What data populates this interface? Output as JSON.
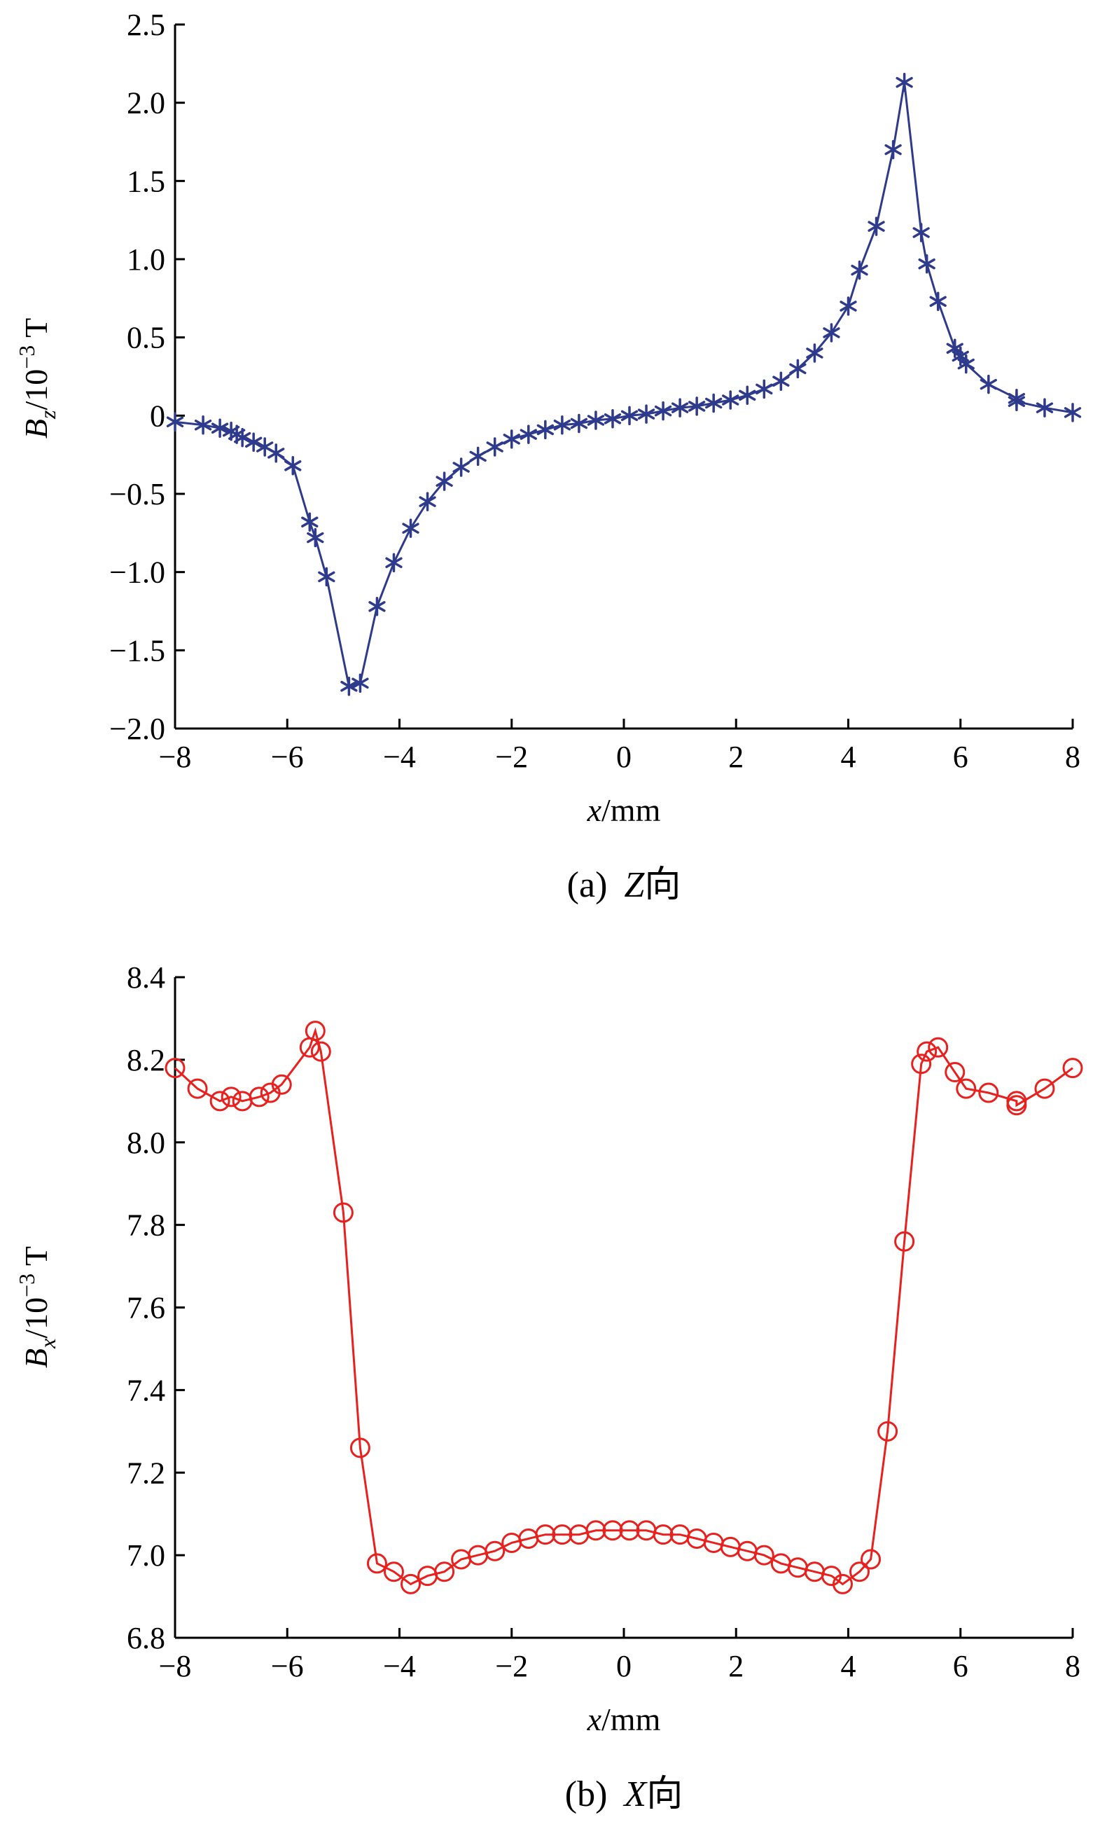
{
  "chart_data": [
    {
      "type": "line",
      "caption": {
        "prefix": "(a)",
        "axis_letter": "Z",
        "suffix": "向"
      },
      "xlabel": {
        "var": "x",
        "unit": "/mm"
      },
      "ylabel": {
        "var": "B",
        "sub": "z",
        "unit": "/10",
        "exp": "−3",
        "tail": " T"
      },
      "xlim": [
        -8,
        8
      ],
      "ylim": [
        -2.0,
        2.5
      ],
      "xticks": [
        -8,
        -6,
        -4,
        -2,
        0,
        2,
        4,
        6,
        8
      ],
      "xtick_labels": [
        "−8",
        "−6",
        "−4",
        "−2",
        "0",
        "2",
        "4",
        "6",
        "8"
      ],
      "yticks": [
        -2.0,
        -1.5,
        -1.0,
        -0.5,
        0,
        0.5,
        1.0,
        1.5,
        2.0,
        2.5
      ],
      "ytick_labels": [
        "−2.0",
        "−1.5",
        "−1.0",
        "−0.5",
        "0",
        "0.5",
        "1.0",
        "1.5",
        "2.0",
        "2.5"
      ],
      "grid": false,
      "color": "#2e3a8c",
      "marker": "asterisk",
      "series": [
        {
          "x": [
            -8.0,
            -7.5,
            -7.2,
            -7.0,
            -6.9,
            -6.8,
            -6.6,
            -6.4,
            -6.2,
            -5.9,
            -5.6,
            -5.5,
            -5.3,
            -4.9,
            -4.7,
            -4.4,
            -4.1,
            -3.8,
            -3.5,
            -3.2,
            -2.9,
            -2.6,
            -2.3,
            -2.0,
            -1.7,
            -1.4,
            -1.1,
            -0.8,
            -0.5,
            -0.2,
            0.1,
            0.4,
            0.7,
            1.0,
            1.3,
            1.6,
            1.9,
            2.2,
            2.5,
            2.8,
            3.1,
            3.4,
            3.7,
            4.0,
            4.2,
            4.5,
            4.8,
            5.0,
            5.3,
            5.4,
            5.6,
            5.9,
            6.0,
            6.1,
            6.5,
            7.0,
            7.0,
            7.5,
            8.0
          ],
          "y": [
            -0.04,
            -0.06,
            -0.08,
            -0.1,
            -0.12,
            -0.14,
            -0.17,
            -0.2,
            -0.24,
            -0.32,
            -0.68,
            -0.78,
            -1.03,
            -1.73,
            -1.71,
            -1.22,
            -0.94,
            -0.72,
            -0.55,
            -0.42,
            -0.33,
            -0.26,
            -0.2,
            -0.15,
            -0.12,
            -0.09,
            -0.06,
            -0.05,
            -0.03,
            -0.02,
            0.0,
            0.01,
            0.03,
            0.05,
            0.06,
            0.08,
            0.1,
            0.13,
            0.17,
            0.22,
            0.3,
            0.4,
            0.53,
            0.7,
            0.93,
            1.21,
            1.7,
            2.13,
            1.17,
            0.97,
            0.73,
            0.43,
            0.38,
            0.33,
            0.2,
            0.11,
            0.09,
            0.05,
            0.02
          ]
        }
      ]
    },
    {
      "type": "line",
      "caption": {
        "prefix": "(b)",
        "axis_letter": "X",
        "suffix": "向"
      },
      "xlabel": {
        "var": "x",
        "unit": "/mm"
      },
      "ylabel": {
        "var": "B",
        "sub": "x",
        "unit": "/10",
        "exp": "−3",
        "tail": " T"
      },
      "xlim": [
        -8,
        8
      ],
      "ylim": [
        6.8,
        8.4
      ],
      "xticks": [
        -8,
        -6,
        -4,
        -2,
        0,
        2,
        4,
        6,
        8
      ],
      "xtick_labels": [
        "−8",
        "−6",
        "−4",
        "−2",
        "0",
        "2",
        "4",
        "6",
        "8"
      ],
      "yticks": [
        6.8,
        7.0,
        7.2,
        7.4,
        7.6,
        7.8,
        8.0,
        8.2,
        8.4
      ],
      "ytick_labels": [
        "6.8",
        "7.0",
        "7.2",
        "7.4",
        "7.6",
        "7.8",
        "8.0",
        "8.2",
        "8.4"
      ],
      "grid": false,
      "color": "#e8201e",
      "marker": "circle",
      "series": [
        {
          "x": [
            -8.0,
            -7.6,
            -7.2,
            -7.0,
            -6.8,
            -6.5,
            -6.3,
            -6.1,
            -5.6,
            -5.5,
            -5.4,
            -5.0,
            -4.7,
            -4.4,
            -4.1,
            -3.8,
            -3.5,
            -3.2,
            -2.9,
            -2.6,
            -2.3,
            -2.0,
            -1.7,
            -1.4,
            -1.1,
            -0.8,
            -0.5,
            -0.2,
            0.1,
            0.4,
            0.7,
            1.0,
            1.3,
            1.6,
            1.9,
            2.2,
            2.5,
            2.8,
            3.1,
            3.4,
            3.7,
            3.9,
            4.2,
            4.4,
            4.7,
            5.0,
            5.3,
            5.4,
            5.6,
            5.9,
            6.1,
            6.5,
            7.0,
            7.0,
            7.5,
            8.0
          ],
          "y": [
            8.18,
            8.13,
            8.1,
            8.11,
            8.1,
            8.11,
            8.12,
            8.14,
            8.23,
            8.27,
            8.22,
            7.83,
            7.26,
            6.98,
            6.96,
            6.93,
            6.95,
            6.96,
            6.99,
            7.0,
            7.01,
            7.03,
            7.04,
            7.05,
            7.05,
            7.05,
            7.06,
            7.06,
            7.06,
            7.06,
            7.05,
            7.05,
            7.04,
            7.03,
            7.02,
            7.01,
            7.0,
            6.98,
            6.97,
            6.96,
            6.95,
            6.93,
            6.96,
            6.99,
            7.3,
            7.76,
            8.19,
            8.22,
            8.23,
            8.17,
            8.13,
            8.12,
            8.1,
            8.09,
            8.13,
            8.18
          ]
        }
      ]
    }
  ]
}
